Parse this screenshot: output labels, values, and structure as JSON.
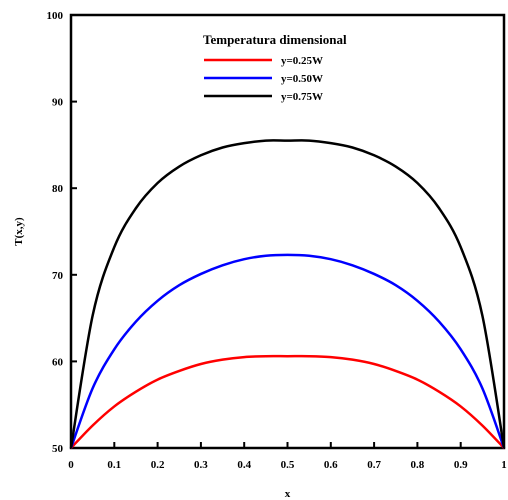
{
  "chart_data": {
    "type": "line",
    "title": "",
    "xlabel": "x",
    "ylabel": "T(x,y)",
    "xlim": [
      0,
      1
    ],
    "ylim": [
      50,
      100
    ],
    "xticks": [
      0,
      0.1,
      0.2,
      0.3,
      0.4,
      0.5,
      0.6,
      0.7,
      0.8,
      0.9,
      1
    ],
    "xtick_labels": [
      "0",
      "0.1",
      "0.2",
      "0.3",
      "0.4",
      "0.5",
      "0.6",
      "0.7",
      "0.8",
      "0.9",
      "1"
    ],
    "yticks": [
      50,
      60,
      70,
      80,
      90,
      100
    ],
    "ytick_labels": [
      "50",
      "60",
      "70",
      "80",
      "90",
      "100"
    ],
    "grid": false,
    "legend": {
      "title": "Temperatura dimensional",
      "position": "top-right"
    },
    "x": [
      0,
      0.05,
      0.1,
      0.15,
      0.2,
      0.25,
      0.3,
      0.35,
      0.4,
      0.45,
      0.5,
      0.55,
      0.6,
      0.65,
      0.7,
      0.75,
      0.8,
      0.85,
      0.9,
      0.95,
      1
    ],
    "series": [
      {
        "name": "y=0.25W",
        "color": "#ff0000",
        "values": [
          50,
          52.6,
          54.8,
          56.5,
          57.9,
          58.9,
          59.7,
          60.2,
          60.5,
          60.6,
          60.6,
          60.6,
          60.5,
          60.2,
          59.7,
          58.9,
          57.9,
          56.5,
          54.8,
          52.6,
          50
        ]
      },
      {
        "name": "y=0.50W",
        "color": "#0000ff",
        "values": [
          50,
          56.9,
          61.4,
          64.6,
          67.0,
          68.8,
          70.1,
          71.1,
          71.8,
          72.2,
          72.3,
          72.2,
          71.8,
          71.1,
          70.1,
          68.8,
          67.0,
          64.6,
          61.4,
          56.9,
          50
        ]
      },
      {
        "name": "y=0.75W",
        "color": "#000000",
        "values": [
          50,
          65.3,
          73.2,
          77.7,
          80.6,
          82.5,
          83.8,
          84.7,
          85.2,
          85.5,
          85.5,
          85.5,
          85.2,
          84.7,
          83.8,
          82.5,
          80.6,
          77.7,
          73.2,
          65.3,
          50
        ]
      }
    ]
  }
}
